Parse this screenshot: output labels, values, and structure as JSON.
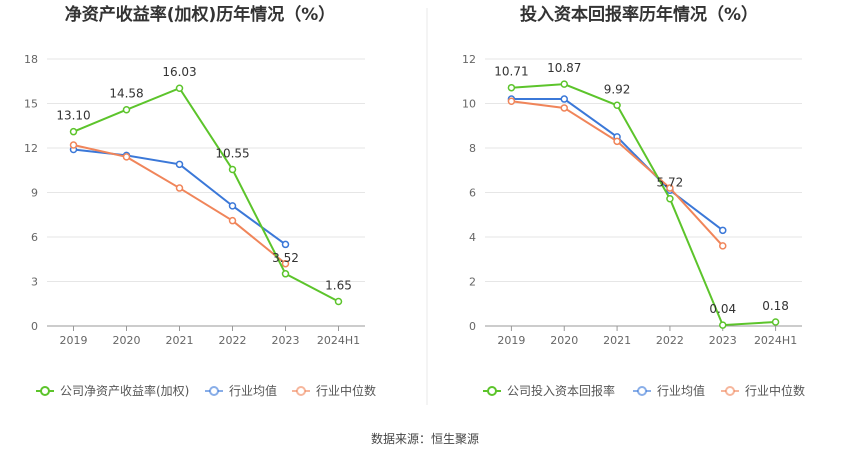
{
  "source_label": "数据来源：恒生聚源",
  "colors": {
    "company": "#5cc42b",
    "industry_avg": "#3b78d8",
    "industry_median": "#f0855a"
  },
  "chart_data": [
    {
      "type": "line",
      "title": "净资产收益率(加权)历年情况（%）",
      "categories": [
        "2019",
        "2020",
        "2021",
        "2022",
        "2023",
        "2024H1"
      ],
      "ylim": [
        0,
        18
      ],
      "yticks": [
        "0",
        "3",
        "6",
        "9",
        "12",
        "15",
        "18"
      ],
      "grid": true,
      "legend_position": "bottom",
      "series": [
        {
          "name": "公司净资产收益率(加权)",
          "key": "company",
          "values": [
            13.1,
            14.58,
            16.03,
            10.55,
            3.52,
            1.65
          ],
          "labels": [
            "13.10",
            "14.58",
            "16.03",
            "10.55",
            "3.52",
            "1.65"
          ]
        },
        {
          "name": "行业均值",
          "key": "industry_avg",
          "values": [
            11.9,
            11.5,
            10.9,
            8.1,
            5.5,
            null
          ]
        },
        {
          "name": "行业中位数",
          "key": "industry_median",
          "values": [
            12.2,
            11.4,
            9.3,
            7.1,
            4.2,
            null
          ]
        }
      ]
    },
    {
      "type": "line",
      "title": "投入资本回报率历年情况（%）",
      "categories": [
        "2019",
        "2020",
        "2021",
        "2022",
        "2023",
        "2024H1"
      ],
      "ylim": [
        0,
        12
      ],
      "yticks": [
        "0",
        "2",
        "4",
        "6",
        "8",
        "10",
        "12"
      ],
      "grid": true,
      "legend_position": "bottom",
      "series": [
        {
          "name": "公司投入资本回报率",
          "key": "company",
          "values": [
            10.71,
            10.87,
            9.92,
            5.72,
            0.04,
            0.18
          ],
          "labels": [
            "10.71",
            "10.87",
            "9.92",
            "5.72",
            "0.04",
            "0.18"
          ]
        },
        {
          "name": "行业均值",
          "key": "industry_avg",
          "values": [
            10.2,
            10.2,
            8.5,
            6.1,
            4.3,
            null
          ]
        },
        {
          "name": "行业中位数",
          "key": "industry_median",
          "values": [
            10.1,
            9.8,
            8.3,
            6.2,
            3.6,
            null
          ]
        }
      ]
    }
  ]
}
